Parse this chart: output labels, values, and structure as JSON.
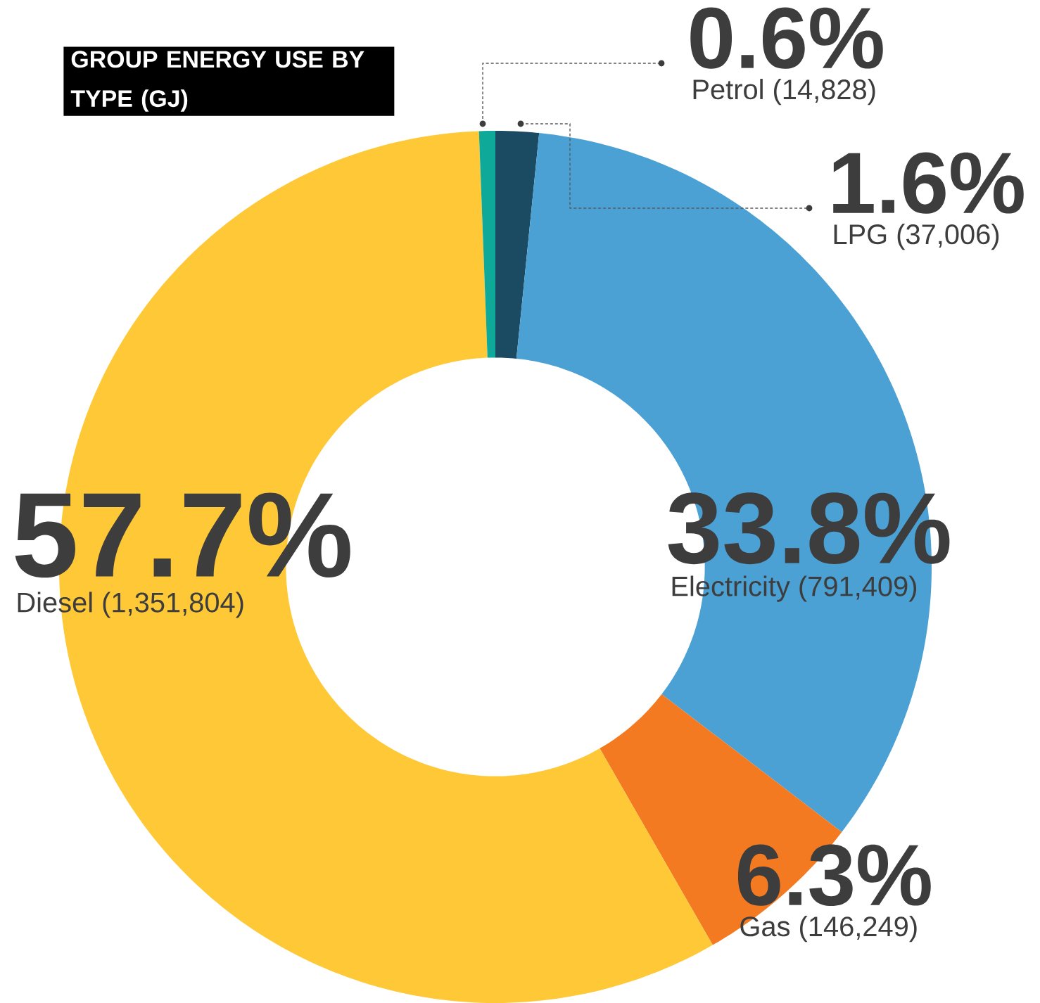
{
  "chart_data": {
    "type": "donut",
    "title": "GROUP ENERGY USE BY TYPE (GJ)",
    "categories": [
      "LPG (37,006)",
      "Electricity (791,409)",
      "Gas (146,249)",
      "Diesel (1,351,804)",
      "Petrol (14,828)"
    ],
    "values": [
      1.6,
      33.8,
      6.3,
      57.7,
      0.6
    ],
    "value_labels": [
      "1.6%",
      "33.8%",
      "6.3%",
      "57.7%",
      "0.6%"
    ],
    "colors": [
      "#1b4a63",
      "#4ba1d4",
      "#f47a22",
      "#fec837",
      "#0fa99a"
    ]
  }
}
